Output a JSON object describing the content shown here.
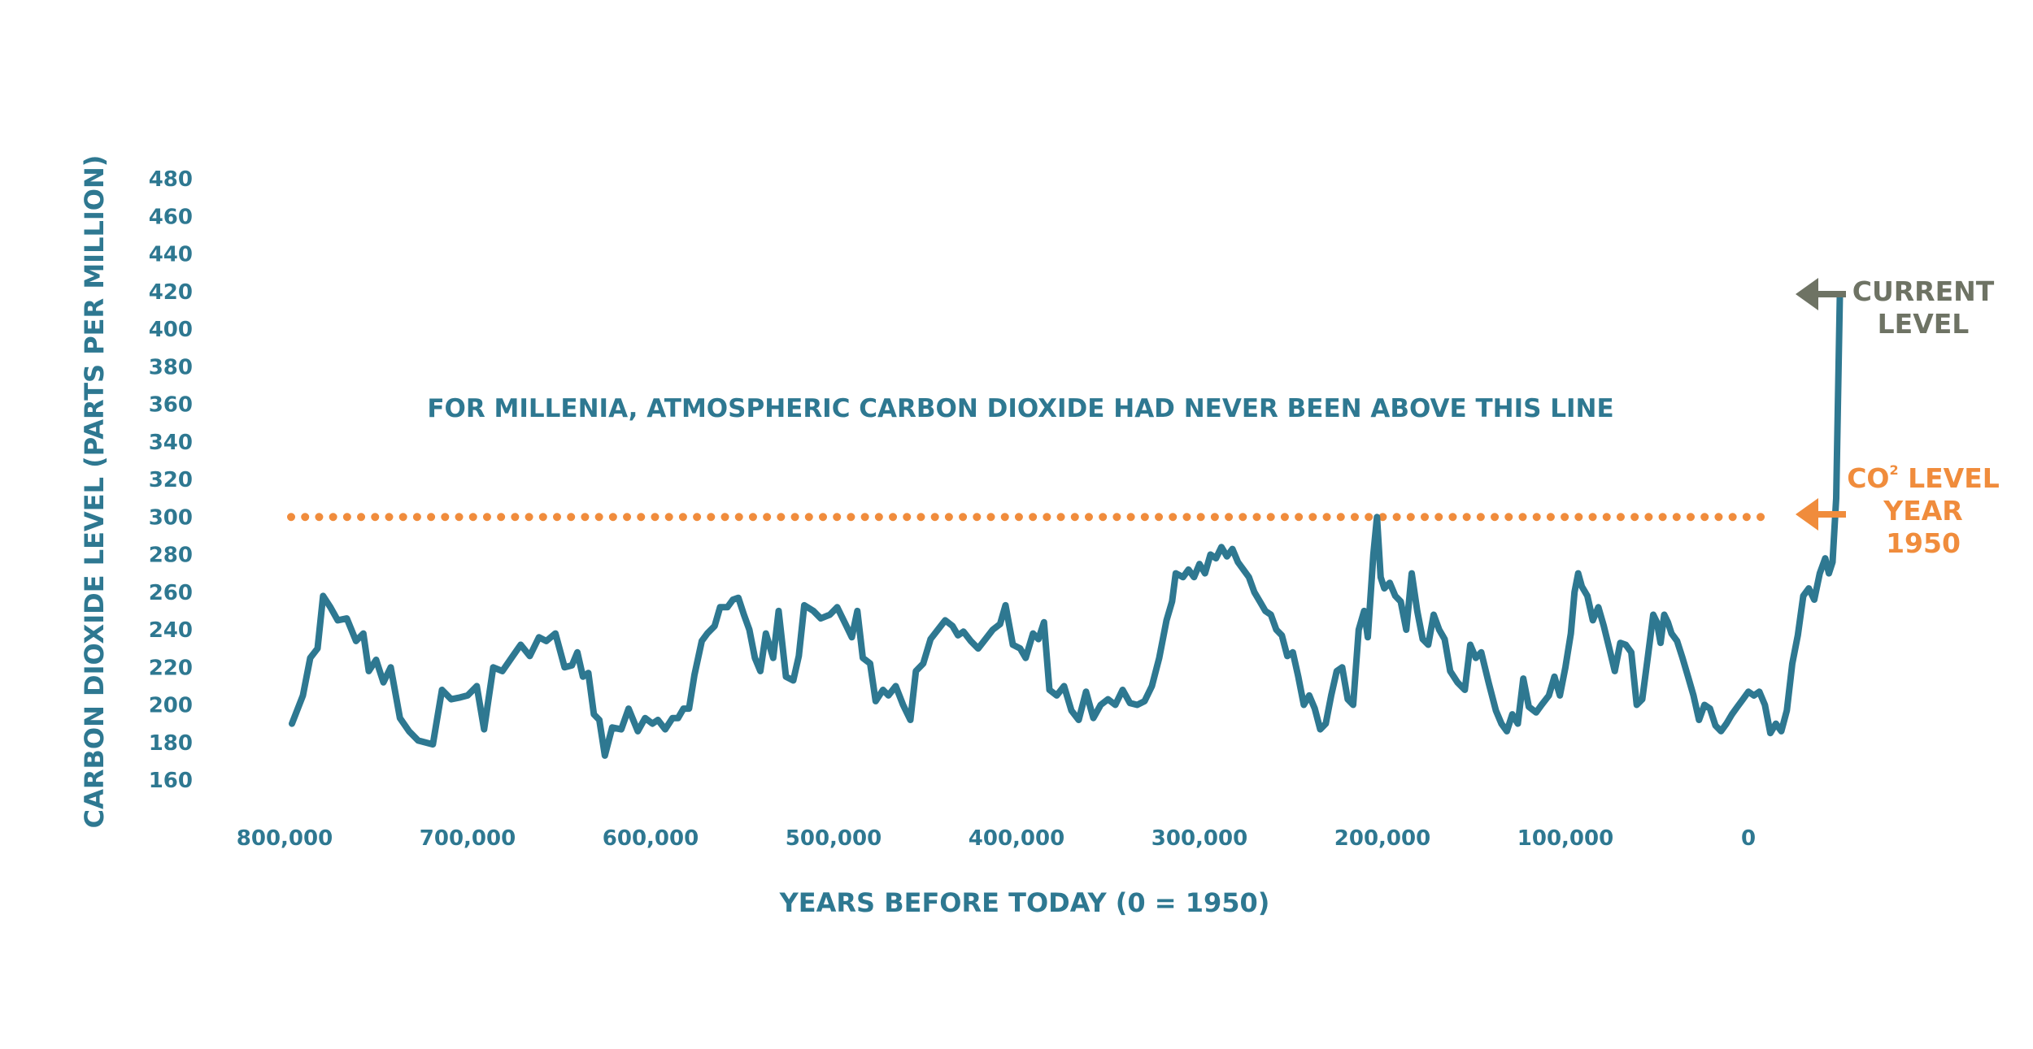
{
  "colors": {
    "series": "#2e7891",
    "threshold": "#f08c3c",
    "current": "#6e7364",
    "text": "#2e7891"
  },
  "labels": {
    "annotation": "FOR MILLENIA, ATMOSPHERIC CARBON DIOXIDE HAD NEVER BEEN ABOVE THIS LINE",
    "current_line1": "CURRENT",
    "current_line2": "LEVEL",
    "co2_prefix": "CO",
    "co2_superscript": "2",
    "co2_suffix": " LEVEL",
    "co2_line2": "YEAR",
    "co2_line3": "1950"
  },
  "icons": {
    "current_arrow": "arrow-left-icon",
    "co2_arrow": "arrow-left-icon"
  },
  "chart_data": {
    "type": "line",
    "title": "",
    "xlabel": "YEARS BEFORE TODAY (0 = 1950)",
    "ylabel": "CARBON DIOXIDE LEVEL (PARTS PER MILLION)",
    "xlim": [
      800000,
      0
    ],
    "ylim": [
      160,
      480
    ],
    "x_reversed": true,
    "grid": false,
    "x_tick_labels": [
      {
        "value": 800000,
        "label": "800,000"
      },
      {
        "value": 700000,
        "label": "700,000"
      },
      {
        "value": 600000,
        "label": "600,000"
      },
      {
        "value": 500000,
        "label": "500,000"
      },
      {
        "value": 400000,
        "label": "400,000"
      },
      {
        "value": 300000,
        "label": "300,000"
      },
      {
        "value": 200000,
        "label": "200,000"
      },
      {
        "value": 100000,
        "label": "100,000"
      },
      {
        "value": 0,
        "label": "0"
      }
    ],
    "y_tick_labels": [
      {
        "value": 160,
        "label": "160"
      },
      {
        "value": 180,
        "label": "180"
      },
      {
        "value": 200,
        "label": "200"
      },
      {
        "value": 220,
        "label": "220"
      },
      {
        "value": 240,
        "label": "240"
      },
      {
        "value": 260,
        "label": "260"
      },
      {
        "value": 280,
        "label": "280"
      },
      {
        "value": 300,
        "label": "300"
      },
      {
        "value": 320,
        "label": "320"
      },
      {
        "value": 340,
        "label": "340"
      },
      {
        "value": 360,
        "label": "360"
      },
      {
        "value": 380,
        "label": "380"
      },
      {
        "value": 400,
        "label": "400"
      },
      {
        "value": 420,
        "label": "420"
      },
      {
        "value": 440,
        "label": "440"
      },
      {
        "value": 460,
        "label": "460"
      },
      {
        "value": 480,
        "label": "480"
      }
    ],
    "threshold": {
      "value": 300,
      "style": "dotted"
    },
    "series": [
      {
        "points": [
          [
            796000,
            190
          ],
          [
            790000,
            205
          ],
          [
            786000,
            225
          ],
          [
            782000,
            230
          ],
          [
            779000,
            258
          ],
          [
            775000,
            252
          ],
          [
            771000,
            245
          ],
          [
            766000,
            246
          ],
          [
            761000,
            234
          ],
          [
            757000,
            238
          ],
          [
            754000,
            218
          ],
          [
            750000,
            224
          ],
          [
            746000,
            212
          ],
          [
            742000,
            220
          ],
          [
            737000,
            193
          ],
          [
            732000,
            186
          ],
          [
            727000,
            181
          ],
          [
            719000,
            179
          ],
          [
            714000,
            208
          ],
          [
            709000,
            203
          ],
          [
            704000,
            204
          ],
          [
            700000,
            205
          ],
          [
            695000,
            210
          ],
          [
            691000,
            187
          ],
          [
            686000,
            220
          ],
          [
            681000,
            218
          ],
          [
            676000,
            225
          ],
          [
            671000,
            232
          ],
          [
            666000,
            226
          ],
          [
            661000,
            236
          ],
          [
            657000,
            234
          ],
          [
            652000,
            238
          ],
          [
            647000,
            220
          ],
          [
            643000,
            221
          ],
          [
            640000,
            228
          ],
          [
            637000,
            215
          ],
          [
            634000,
            217
          ],
          [
            631000,
            195
          ],
          [
            628000,
            192
          ],
          [
            625000,
            173
          ],
          [
            621000,
            188
          ],
          [
            616000,
            187
          ],
          [
            612000,
            198
          ],
          [
            607000,
            186
          ],
          [
            603000,
            193
          ],
          [
            599000,
            190
          ],
          [
            596000,
            192
          ],
          [
            592000,
            187
          ],
          [
            588000,
            193
          ],
          [
            585000,
            193
          ],
          [
            582000,
            198
          ],
          [
            579000,
            198
          ],
          [
            576000,
            216
          ],
          [
            572000,
            234
          ],
          [
            569000,
            238
          ],
          [
            565000,
            242
          ],
          [
            562000,
            252
          ],
          [
            558000,
            252
          ],
          [
            555000,
            256
          ],
          [
            552000,
            257
          ],
          [
            549000,
            248
          ],
          [
            546000,
            240
          ],
          [
            543000,
            225
          ],
          [
            540000,
            218
          ],
          [
            537000,
            238
          ],
          [
            533000,
            225
          ],
          [
            530000,
            250
          ],
          [
            526000,
            215
          ],
          [
            522000,
            213
          ],
          [
            519000,
            226
          ],
          [
            516000,
            253
          ],
          [
            511000,
            250
          ],
          [
            507000,
            246
          ],
          [
            502000,
            248
          ],
          [
            498000,
            252
          ],
          [
            493000,
            242
          ],
          [
            490000,
            236
          ],
          [
            487000,
            250
          ],
          [
            484000,
            225
          ],
          [
            480000,
            222
          ],
          [
            477000,
            202
          ],
          [
            473000,
            208
          ],
          [
            470000,
            205
          ],
          [
            466000,
            210
          ],
          [
            462000,
            200
          ],
          [
            458000,
            192
          ],
          [
            455000,
            218
          ],
          [
            451000,
            222
          ],
          [
            447000,
            235
          ],
          [
            443000,
            240
          ],
          [
            439000,
            245
          ],
          [
            435000,
            242
          ],
          [
            432000,
            237
          ],
          [
            429000,
            239
          ],
          [
            425000,
            234
          ],
          [
            421000,
            230
          ],
          [
            417000,
            235
          ],
          [
            413000,
            240
          ],
          [
            409000,
            243
          ],
          [
            406000,
            253
          ],
          [
            402000,
            232
          ],
          [
            398000,
            230
          ],
          [
            395000,
            225
          ],
          [
            391000,
            238
          ],
          [
            388000,
            235
          ],
          [
            385000,
            244
          ],
          [
            382000,
            208
          ],
          [
            378000,
            205
          ],
          [
            374000,
            210
          ],
          [
            370000,
            197
          ],
          [
            366000,
            192
          ],
          [
            362000,
            207
          ],
          [
            358000,
            193
          ],
          [
            354000,
            200
          ],
          [
            350000,
            203
          ],
          [
            346000,
            200
          ],
          [
            342000,
            208
          ],
          [
            338000,
            201
          ],
          [
            334000,
            200
          ],
          [
            330000,
            202
          ],
          [
            326000,
            210
          ],
          [
            322000,
            225
          ],
          [
            318000,
            245
          ],
          [
            315000,
            255
          ],
          [
            313000,
            270
          ],
          [
            309000,
            268
          ],
          [
            306000,
            272
          ],
          [
            303000,
            268
          ],
          [
            300000,
            275
          ],
          [
            297000,
            270
          ],
          [
            294000,
            280
          ],
          [
            291000,
            278
          ],
          [
            288000,
            284
          ],
          [
            285000,
            279
          ],
          [
            282000,
            283
          ],
          [
            279000,
            276
          ],
          [
            276000,
            272
          ],
          [
            273000,
            268
          ],
          [
            270000,
            260
          ],
          [
            267000,
            255
          ],
          [
            264000,
            250
          ],
          [
            261000,
            248
          ],
          [
            258000,
            240
          ],
          [
            255000,
            237
          ],
          [
            252000,
            226
          ],
          [
            249000,
            228
          ],
          [
            246000,
            215
          ],
          [
            243000,
            200
          ],
          [
            240000,
            205
          ],
          [
            237000,
            198
          ],
          [
            234000,
            187
          ],
          [
            231000,
            190
          ],
          [
            228000,
            205
          ],
          [
            225000,
            218
          ],
          [
            222000,
            220
          ],
          [
            219000,
            203
          ],
          [
            216000,
            200
          ],
          [
            213000,
            240
          ],
          [
            210000,
            250
          ],
          [
            208000,
            236
          ],
          [
            205000,
            280
          ],
          [
            203000,
            300
          ],
          [
            201000,
            268
          ],
          [
            199000,
            262
          ],
          [
            196000,
            265
          ],
          [
            193000,
            258
          ],
          [
            190000,
            255
          ],
          [
            187000,
            240
          ],
          [
            184000,
            270
          ],
          [
            181000,
            250
          ],
          [
            178000,
            235
          ],
          [
            175000,
            232
          ],
          [
            172000,
            248
          ],
          [
            169000,
            240
          ],
          [
            166000,
            235
          ],
          [
            163000,
            218
          ],
          [
            159000,
            212
          ],
          [
            155000,
            208
          ],
          [
            152000,
            232
          ],
          [
            149000,
            225
          ],
          [
            146000,
            228
          ],
          [
            142000,
            212
          ],
          [
            138000,
            197
          ],
          [
            135000,
            190
          ],
          [
            132000,
            186
          ],
          [
            129000,
            195
          ],
          [
            126000,
            190
          ],
          [
            123000,
            214
          ],
          [
            120000,
            199
          ],
          [
            116000,
            196
          ],
          [
            113000,
            200
          ],
          [
            109000,
            205
          ],
          [
            106000,
            215
          ],
          [
            103000,
            205
          ],
          [
            100000,
            220
          ],
          [
            97000,
            238
          ],
          [
            95000,
            260
          ],
          [
            93000,
            270
          ],
          [
            91000,
            263
          ],
          [
            88000,
            258
          ],
          [
            85000,
            245
          ],
          [
            82000,
            252
          ],
          [
            79000,
            242
          ],
          [
            76000,
            230
          ],
          [
            73000,
            218
          ],
          [
            70000,
            233
          ],
          [
            67000,
            232
          ],
          [
            64000,
            228
          ],
          [
            61000,
            200
          ],
          [
            58000,
            203
          ],
          [
            55000,
            225
          ],
          [
            52000,
            248
          ],
          [
            50000,
            244
          ],
          [
            48000,
            233
          ],
          [
            46000,
            248
          ],
          [
            44000,
            244
          ],
          [
            42000,
            238
          ],
          [
            39000,
            234
          ],
          [
            36000,
            225
          ],
          [
            33000,
            215
          ],
          [
            30000,
            205
          ],
          [
            27000,
            192
          ],
          [
            24000,
            200
          ],
          [
            21000,
            198
          ],
          [
            18000,
            189
          ],
          [
            15000,
            186
          ],
          [
            12000,
            190
          ],
          [
            9000,
            195
          ],
          [
            6000,
            199
          ],
          [
            3000,
            203
          ],
          [
            0,
            207
          ],
          [
            -3000,
            205
          ],
          [
            -6000,
            207
          ],
          [
            -9000,
            200
          ],
          [
            -12000,
            185
          ],
          [
            -15000,
            190
          ],
          [
            -18000,
            186
          ],
          [
            -21000,
            197
          ],
          [
            -24000,
            222
          ],
          [
            -27000,
            237
          ],
          [
            -30000,
            258
          ],
          [
            -33000,
            262
          ],
          [
            -36000,
            256
          ],
          [
            -39000,
            270
          ],
          [
            -42000,
            278
          ],
          [
            -44000,
            270
          ],
          [
            -46000,
            276
          ],
          [
            -48000,
            310
          ],
          [
            -50000,
            418
          ]
        ]
      }
    ]
  }
}
